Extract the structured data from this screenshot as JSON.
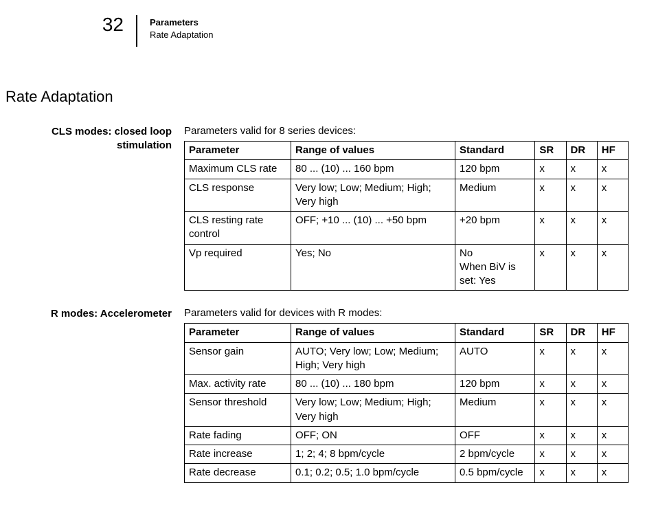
{
  "header": {
    "page_number": "32",
    "line1": "Parameters",
    "line2": "Rate Adaptation"
  },
  "section_title": "Rate Adaptation",
  "columns": {
    "parameter": "Parameter",
    "range": "Range of values",
    "standard": "Standard",
    "sr": "SR",
    "dr": "DR",
    "hf": "HF"
  },
  "cls_block": {
    "side_label": "CLS modes: closed loop stimulation",
    "intro": "Parameters valid for 8 series devices:",
    "rows": [
      {
        "parameter": "Maximum CLS rate",
        "range": "80 ... (10) ... 160 bpm",
        "standard": "120 bpm",
        "sr": "x",
        "dr": "x",
        "hf": "x"
      },
      {
        "parameter": "CLS response",
        "range": "Very low; Low; Medium; High; Very high",
        "standard": "Medium",
        "sr": "x",
        "dr": "x",
        "hf": "x"
      },
      {
        "parameter": "CLS resting rate control",
        "range": "OFF; +10 ... (10) ... +50 bpm",
        "standard": "+20 bpm",
        "sr": "x",
        "dr": "x",
        "hf": "x"
      },
      {
        "parameter": "Vp required",
        "range": "Yes; No",
        "standard": "No\nWhen BiV is set: Yes",
        "sr": "x",
        "dr": "x",
        "hf": "x"
      }
    ]
  },
  "r_block": {
    "side_label": "R modes: Accelerometer",
    "intro": "Parameters valid for devices with R modes:",
    "rows": [
      {
        "parameter": "Sensor gain",
        "range": "AUTO; Very low; Low; Medium; High; Very high",
        "standard": "AUTO",
        "sr": "x",
        "dr": "x",
        "hf": "x"
      },
      {
        "parameter": "Max. activity rate",
        "range": "80 ... (10) ... 180 bpm",
        "standard": "120 bpm",
        "sr": "x",
        "dr": "x",
        "hf": "x"
      },
      {
        "parameter": "Sensor threshold",
        "range": "Very low; Low; Medium; High; Very high",
        "standard": "Medium",
        "sr": "x",
        "dr": "x",
        "hf": "x"
      },
      {
        "parameter": "Rate fading",
        "range": "OFF; ON",
        "standard": "OFF",
        "sr": "x",
        "dr": "x",
        "hf": "x"
      },
      {
        "parameter": "Rate increase",
        "range": "1; 2; 4; 8 bpm/cycle",
        "standard": "2 bpm/cycle",
        "sr": "x",
        "dr": "x",
        "hf": "x"
      },
      {
        "parameter": "Rate decrease",
        "range": "0.1; 0.2; 0.5; 1.0 bpm/cycle",
        "standard": "0.5 bpm/cycle",
        "sr": "x",
        "dr": "x",
        "hf": "x"
      }
    ]
  }
}
